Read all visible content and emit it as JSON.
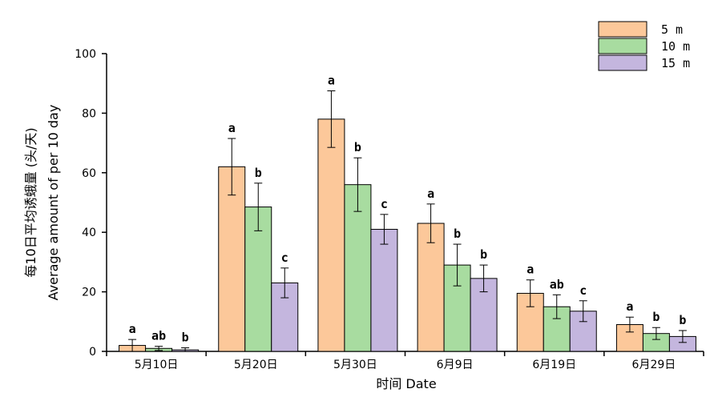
{
  "chart_data": {
    "type": "bar",
    "title": "",
    "xlabel": "时间 Date",
    "ylabel": "每10日平均诱蛾量 (头/天)",
    "ylabel_en": "Average amount of per 10 day",
    "ylim": [
      0,
      100
    ],
    "yticks": [
      "0",
      "20",
      "40",
      "60",
      "80",
      "100"
    ],
    "categories": [
      "5月10日",
      "5月20日",
      "5月30日",
      "6月9日",
      "6月19日",
      "6月29日"
    ],
    "legend_position": "top-right",
    "series": [
      {
        "name": "5 m",
        "color": "#fcc89a",
        "values": [
          2,
          62,
          78,
          43,
          19.5,
          9
        ],
        "errors": [
          2,
          9.5,
          9.5,
          6.5,
          4.5,
          2.5
        ],
        "letters": [
          "a",
          "a",
          "a",
          "a",
          "a",
          "a"
        ]
      },
      {
        "name": "10 m",
        "color": "#a8dca0",
        "values": [
          1,
          48.5,
          56,
          29,
          15,
          6
        ],
        "errors": [
          0.7,
          8,
          9,
          7,
          4,
          2
        ],
        "letters": [
          "ab",
          "b",
          "b",
          "b",
          "ab",
          "b"
        ]
      },
      {
        "name": "15 m",
        "color": "#c4b6de",
        "values": [
          0.5,
          23,
          41,
          24.5,
          13.5,
          5
        ],
        "errors": [
          0.7,
          5,
          5,
          4.5,
          3.5,
          2
        ],
        "letters": [
          "b",
          "c",
          "c",
          "b",
          "c",
          "b"
        ]
      }
    ]
  }
}
